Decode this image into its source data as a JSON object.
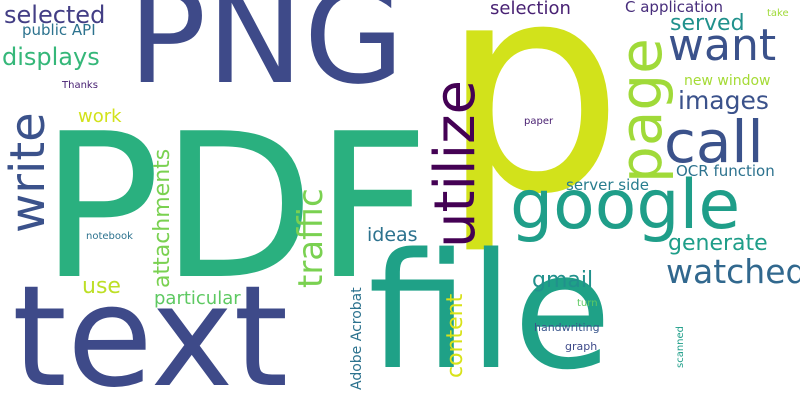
{
  "word_cloud": {
    "background": "#ffffff",
    "palette": [
      "#440154",
      "#3b528b",
      "#21918c",
      "#5ec962",
      "#fde725"
    ],
    "words": [
      {
        "text": "p",
        "color": "#d2e21b",
        "orientation": "horizontal"
      },
      {
        "text": "PDF",
        "color": "#2ab07f",
        "orientation": "horizontal"
      },
      {
        "text": "file",
        "color": "#1fa187",
        "orientation": "horizontal"
      },
      {
        "text": "text",
        "color": "#3e4a89",
        "orientation": "horizontal"
      },
      {
        "text": "PNG",
        "color": "#3e4a89",
        "orientation": "horizontal"
      },
      {
        "text": "google",
        "color": "#1f9e89",
        "orientation": "horizontal"
      },
      {
        "text": "utilize",
        "color": "#440154",
        "orientation": "vertical"
      },
      {
        "text": "page",
        "color": "#a0da39",
        "orientation": "vertical"
      },
      {
        "text": "call",
        "color": "#3b528b",
        "orientation": "horizontal"
      },
      {
        "text": "want",
        "color": "#3b528b",
        "orientation": "horizontal"
      },
      {
        "text": "write",
        "color": "#3b528b",
        "orientation": "vertical"
      },
      {
        "text": "watched",
        "color": "#31688e",
        "orientation": "horizontal"
      },
      {
        "text": "traffic",
        "color": "#7ad151",
        "orientation": "vertical"
      },
      {
        "text": "images",
        "color": "#3b528b",
        "orientation": "horizontal"
      },
      {
        "text": "attachments",
        "color": "#7ad151",
        "orientation": "vertical"
      },
      {
        "text": "selected",
        "color": "#433e85",
        "orientation": "horizontal"
      },
      {
        "text": "displays",
        "color": "#35b779",
        "orientation": "horizontal"
      },
      {
        "text": "generate",
        "color": "#1f9e89",
        "orientation": "horizontal"
      },
      {
        "text": "served",
        "color": "#21918c",
        "orientation": "horizontal"
      },
      {
        "text": "content",
        "color": "#d8e219",
        "orientation": "vertical"
      },
      {
        "text": "gmail",
        "color": "#21918c",
        "orientation": "horizontal"
      },
      {
        "text": "use",
        "color": "#bddf26",
        "orientation": "horizontal"
      },
      {
        "text": "ideas",
        "color": "#2c728e",
        "orientation": "horizontal"
      },
      {
        "text": "particular",
        "color": "#5ec962",
        "orientation": "horizontal"
      },
      {
        "text": "selection",
        "color": "#482173",
        "orientation": "horizontal"
      },
      {
        "text": "work",
        "color": "#d2e21b",
        "orientation": "horizontal"
      },
      {
        "text": "C application",
        "color": "#472d7b",
        "orientation": "horizontal"
      },
      {
        "text": "OCR function",
        "color": "#2c728e",
        "orientation": "horizontal"
      },
      {
        "text": "server side",
        "color": "#287d8e",
        "orientation": "horizontal"
      },
      {
        "text": "public API",
        "color": "#2c728e",
        "orientation": "horizontal"
      },
      {
        "text": "Adobe Acrobat",
        "color": "#2c728e",
        "orientation": "vertical"
      },
      {
        "text": "new window",
        "color": "#a5db36",
        "orientation": "horizontal"
      },
      {
        "text": "handwriting",
        "color": "#39568c",
        "orientation": "horizontal"
      },
      {
        "text": "graph",
        "color": "#3e4a89",
        "orientation": "horizontal"
      },
      {
        "text": "scanned",
        "color": "#1f9e89",
        "orientation": "vertical"
      },
      {
        "text": "notebook",
        "color": "#2c728e",
        "orientation": "horizontal"
      },
      {
        "text": "Thanks",
        "color": "#482173",
        "orientation": "horizontal"
      },
      {
        "text": "paper",
        "color": "#481f70",
        "orientation": "horizontal"
      },
      {
        "text": "take",
        "color": "#a0da39",
        "orientation": "horizontal"
      },
      {
        "text": "turn",
        "color": "#5ec962",
        "orientation": "horizontal"
      }
    ]
  }
}
